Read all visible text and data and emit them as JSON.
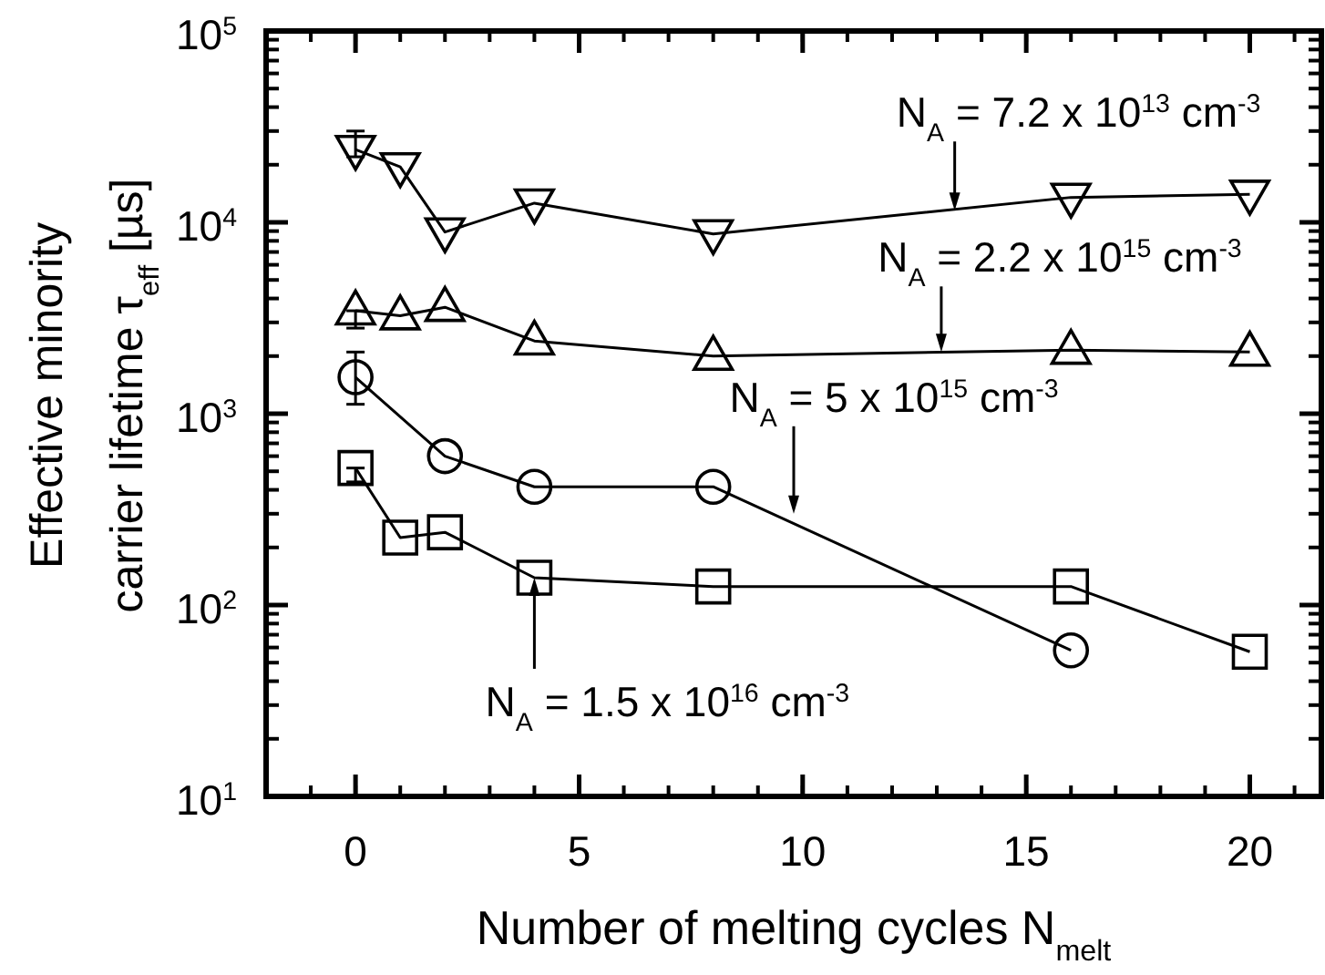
{
  "chart_data": {
    "type": "line",
    "xlabel": "Number of melting cycles N$_{melt}$",
    "ylabel": "Effective minority\ncarrier lifetime τ$_{eff}$ [µs]",
    "log": "y",
    "xlim": [
      -2,
      21.6
    ],
    "ylim": [
      10,
      100000
    ],
    "xticks": [
      0,
      5,
      10,
      15,
      20
    ],
    "yticks": [
      {
        "value": 10,
        "label": "10$^{1}$"
      },
      {
        "value": 100,
        "label": "10$^{2}$"
      },
      {
        "value": 1000,
        "label": "10$^{3}$"
      },
      {
        "value": 10000,
        "label": "10$^{4}$"
      },
      {
        "value": 100000,
        "label": "10$^{5}$"
      }
    ],
    "grid": false,
    "line_style": "solid",
    "series": [
      {
        "color": "#000000",
        "marker": "triangle-down",
        "x": [
          0,
          1,
          2,
          4,
          8,
          16,
          20
        ],
        "values": [
          24000,
          19500,
          8900,
          12600,
          8700,
          13500,
          14000
        ],
        "errors": [
          [
            22000,
            30000
          ],
          null,
          null,
          null,
          null,
          null,
          null
        ]
      },
      {
        "color": "#000000",
        "marker": "triangle",
        "x": [
          0,
          1,
          2,
          4,
          8,
          16,
          20
        ],
        "values": [
          3450,
          3250,
          3600,
          2400,
          2000,
          2150,
          2100
        ],
        "errors": [
          [
            2800,
            3450
          ],
          null,
          null,
          null,
          null,
          null,
          null
        ]
      },
      {
        "color": "#000000",
        "marker": "circle",
        "x": [
          0,
          2,
          4,
          8,
          16
        ],
        "values": [
          1550,
          600,
          415,
          415,
          58
        ],
        "errors": [
          [
            1120,
            2100
          ],
          null,
          null,
          null,
          null
        ]
      },
      {
        "color": "#000000",
        "marker": "square",
        "x": [
          0,
          1,
          2,
          4,
          8,
          16,
          20
        ],
        "values": [
          520,
          225,
          240,
          139,
          125,
          125,
          57
        ],
        "errors": [
          [
            440,
            520
          ],
          null,
          null,
          null,
          null,
          null,
          null
        ]
      }
    ],
    "annotations": [
      {
        "text": "N$_{A}$ = 7.2 x 10$^{13}$ cm$^{-3}$",
        "x": 13.4,
        "y": 11500
      },
      {
        "text": "N$_{A}$ = 2.2 x 10$^{15}$ cm$^{-3}$",
        "x": 13.1,
        "y": 2100
      },
      {
        "text": "N$_{A}$ = 5 x 10$^{15}$ cm$^{-3}$",
        "x": 9.8,
        "y": 300
      },
      {
        "text": "N$_{A}$ = 1.5 x 10$^{16}$ cm$^{-3}$",
        "x": 4,
        "y": 139
      }
    ]
  }
}
